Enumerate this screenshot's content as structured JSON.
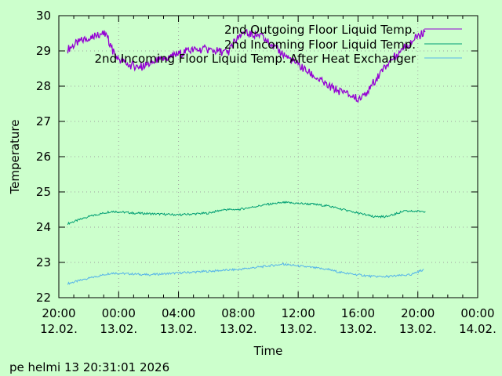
{
  "chart_data": {
    "type": "line",
    "title": "",
    "xlabel": "Time",
    "ylabel": "Temperature",
    "x_unit": "hours since 12.02. 20:00",
    "xlim": [
      0,
      28
    ],
    "ylim": [
      22,
      30
    ],
    "grid": true,
    "legend_position": "top-right",
    "y_ticks": [
      22,
      23,
      24,
      25,
      26,
      27,
      28,
      29,
      30
    ],
    "x_ticks": [
      {
        "value": 0,
        "time": "20:00",
        "date": "12.02."
      },
      {
        "value": 4,
        "time": "00:00",
        "date": "13.02."
      },
      {
        "value": 8,
        "time": "04:00",
        "date": "13.02."
      },
      {
        "value": 12,
        "time": "08:00",
        "date": "13.02."
      },
      {
        "value": 16,
        "time": "12:00",
        "date": "13.02."
      },
      {
        "value": 20,
        "time": "16:00",
        "date": "13.02."
      },
      {
        "value": 24,
        "time": "20:00",
        "date": "13.02."
      },
      {
        "value": 28,
        "time": "00:00",
        "date": "14.02."
      }
    ],
    "series": [
      {
        "name": "2nd Outgoing Floor Liquid Temp.",
        "color": "#9400d3",
        "x": [
          0.6,
          1.3,
          2.1,
          2.6,
          3.2,
          3.6,
          3.9,
          4.7,
          5.5,
          6.5,
          7.6,
          8.6,
          9.7,
          11.3,
          11.8,
          12.3,
          13.4,
          14.4,
          16,
          18,
          19.1,
          20,
          20.7,
          21.7,
          22.8,
          24.3,
          24.5
        ],
        "y": [
          29.05,
          29.25,
          29.4,
          29.5,
          29.45,
          29.0,
          28.8,
          28.6,
          28.55,
          28.7,
          28.85,
          29.0,
          29.05,
          28.95,
          29.3,
          29.5,
          29.45,
          29.1,
          28.6,
          28.0,
          27.8,
          27.65,
          27.9,
          28.5,
          29.0,
          29.5,
          29.55
        ]
      },
      {
        "name": "2nd Incoming Floor Liquid Temp.",
        "color": "#009e73",
        "x": [
          0.6,
          2,
          3.5,
          5,
          8,
          10,
          11,
          12,
          14,
          15,
          17,
          18,
          19,
          20,
          21,
          22,
          23,
          24.5
        ],
        "y": [
          24.1,
          24.3,
          24.45,
          24.4,
          24.35,
          24.4,
          24.5,
          24.5,
          24.65,
          24.7,
          24.65,
          24.6,
          24.5,
          24.4,
          24.3,
          24.3,
          24.45,
          24.45
        ]
      },
      {
        "name": "2nd Incoming Floor Liquid Temp. After Heat Exchanger",
        "color": "#56b4e9",
        "x": [
          0.6,
          2,
          3.5,
          6,
          8,
          10,
          12,
          14,
          15,
          17,
          18,
          19,
          21,
          22,
          23.5,
          24.4
        ],
        "y": [
          22.4,
          22.55,
          22.7,
          22.65,
          22.7,
          22.75,
          22.8,
          22.9,
          22.95,
          22.85,
          22.8,
          22.7,
          22.6,
          22.6,
          22.65,
          22.8
        ]
      }
    ]
  },
  "footer": "pe helmi 13 20:31:01 2026"
}
